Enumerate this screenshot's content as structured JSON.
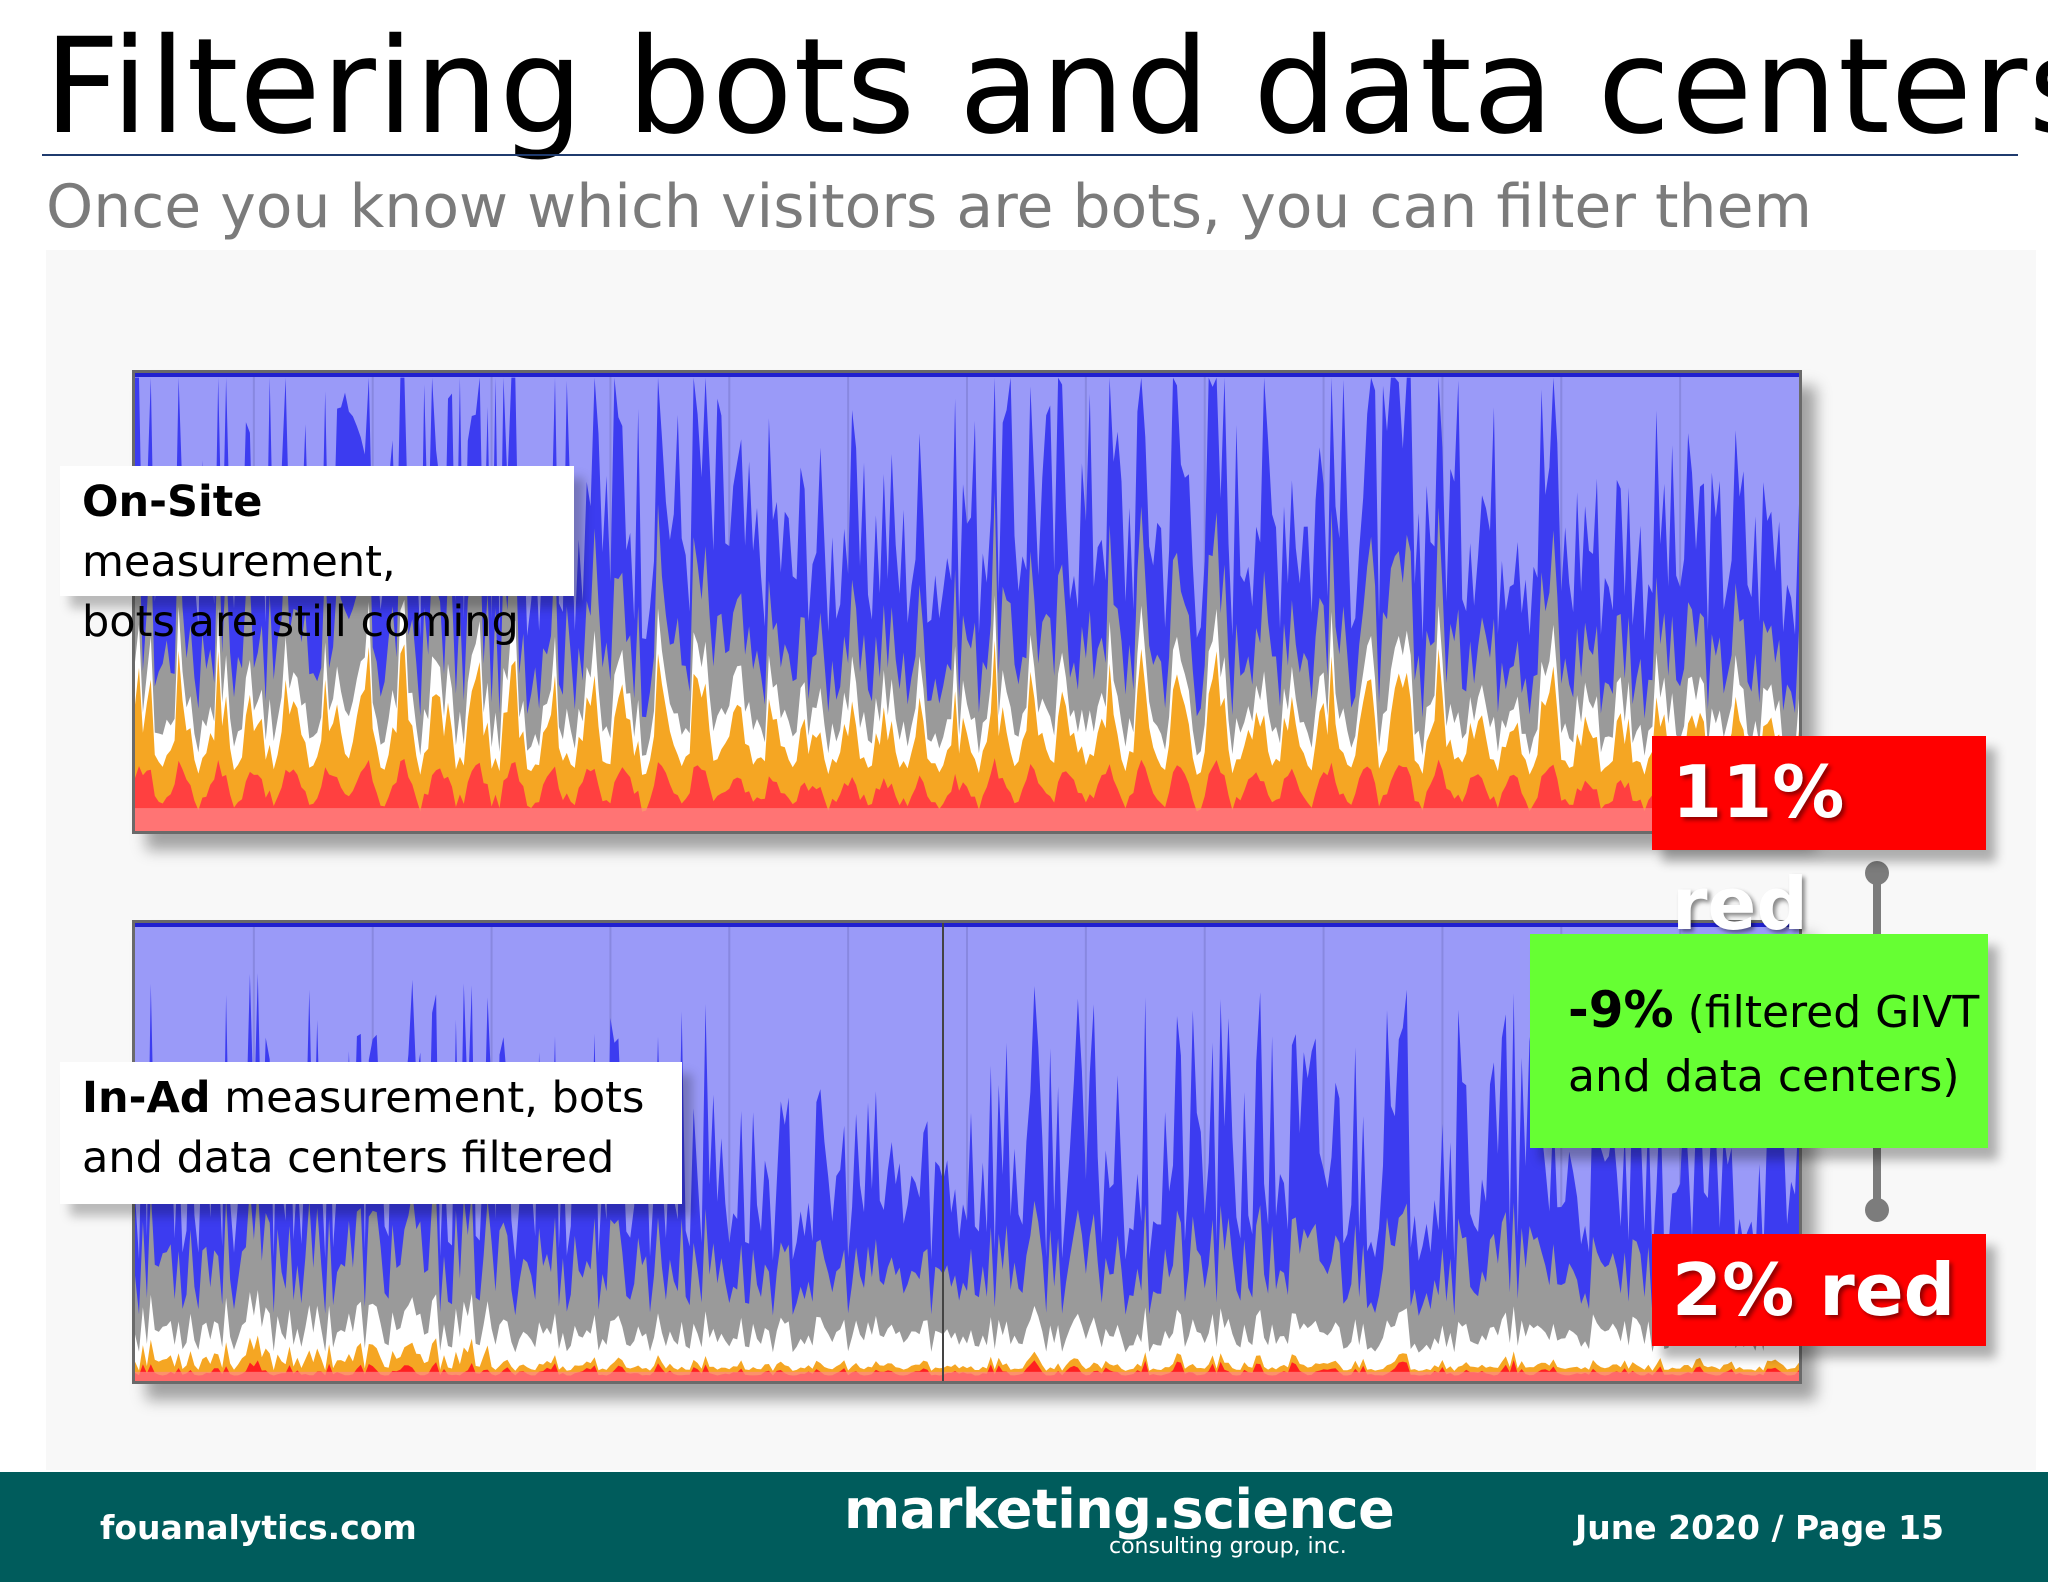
{
  "slide": {
    "title": "Filtering bots and data centers",
    "subtitle": "Once you know which visitors are bots, you can filter them"
  },
  "callouts": {
    "top_bold": "On-Site",
    "top_line1_rest": " measurement,",
    "top_line2": "bots are still coming",
    "bottom_bold": "In-Ad",
    "bottom_line1_rest": " measurement, bots",
    "bottom_line2": "and data centers filtered"
  },
  "badges": {
    "top_red": "11% red",
    "bottom_red": "2% red",
    "delta_bold": "-9%",
    "delta_line1_rest": " (filtered GIVT",
    "delta_line2": "and data centers)"
  },
  "colors": {
    "red_badge": "#ff0000",
    "green_badge": "#66ff33",
    "chart_bg": "#9a9af8",
    "footer_bg": "#005c5c"
  },
  "footer": {
    "left": "fouanalytics.com",
    "logo_main": "marketing.science",
    "logo_sub": "consulting group, inc.",
    "right": "June 2020 / Page 15"
  },
  "chart_data": [
    {
      "type": "area",
      "label": "On-Site measurement",
      "series": [
        {
          "color": "#ff4040"
        },
        {
          "color": "#f5a623"
        },
        {
          "color": "#ffffff"
        },
        {
          "color": "#9a9a9a"
        },
        {
          "color": "#3c3cf0"
        }
      ],
      "red_share_percent": 11
    },
    {
      "type": "area",
      "label": "In-Ad measurement",
      "series": [
        {
          "color": "#ff2020"
        },
        {
          "color": "#f5a623"
        },
        {
          "color": "#ffffff"
        },
        {
          "color": "#9a9a9a"
        },
        {
          "color": "#3c3cf0"
        }
      ],
      "red_share_percent": 2
    }
  ]
}
